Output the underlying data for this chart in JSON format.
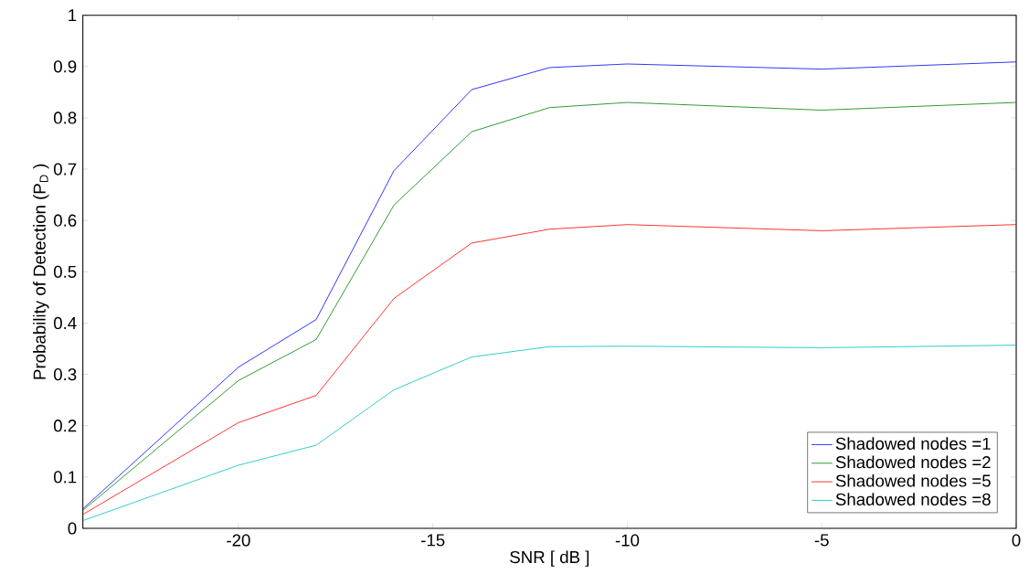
{
  "chart_data": {
    "type": "line",
    "xlabel": "SNR [ dB ]",
    "ylabel": "Probability of Detection (P$_{D}$ )",
    "x": [
      -24,
      -20,
      -18,
      -16,
      -14,
      -12,
      -10,
      -5,
      0
    ],
    "xlim": [
      -24,
      0
    ],
    "xticks": [
      -20,
      -15,
      -10,
      -5,
      0
    ],
    "ylim": [
      0,
      1
    ],
    "yticks": [
      0,
      0.1,
      0.2,
      0.3,
      0.4,
      0.5,
      0.6,
      0.7,
      0.8,
      0.9,
      1
    ],
    "grid": false,
    "legend": "bottom right",
    "marker": "none",
    "line_style": "solid",
    "series": [
      {
        "name": "Shadowed nodes =1",
        "color": "#0000ff",
        "values": [
          0.038,
          0.314,
          0.407,
          0.697,
          0.855,
          0.898,
          0.905,
          0.895,
          0.909
        ]
      },
      {
        "name": "Shadowed nodes =2",
        "color": "#008000",
        "values": [
          0.035,
          0.288,
          0.368,
          0.63,
          0.773,
          0.82,
          0.83,
          0.815,
          0.83
        ]
      },
      {
        "name": "Shadowed nodes =5",
        "color": "#ff0000",
        "values": [
          0.027,
          0.206,
          0.259,
          0.448,
          0.556,
          0.583,
          0.592,
          0.58,
          0.592
        ]
      },
      {
        "name": "Shadowed nodes =8",
        "color": "#00bfbf",
        "values": [
          0.015,
          0.123,
          0.162,
          0.27,
          0.334,
          0.354,
          0.355,
          0.352,
          0.357
        ]
      }
    ]
  }
}
